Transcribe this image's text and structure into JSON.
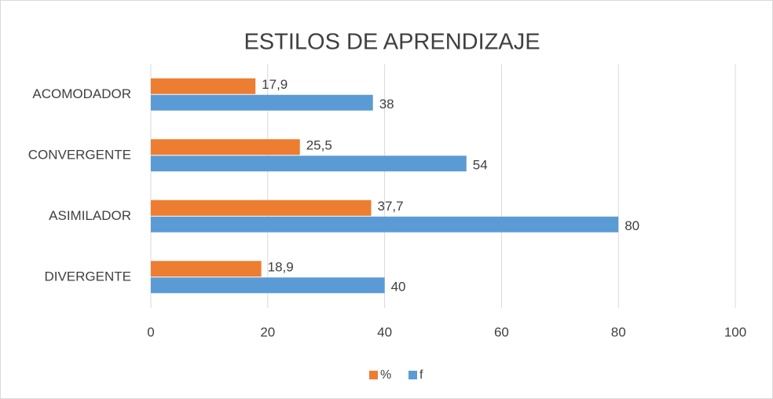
{
  "chart_data": {
    "type": "bar",
    "orientation": "horizontal",
    "title": "ESTILOS DE APRENDIZAJE",
    "categories": [
      "ACOMODADOR",
      "CONVERGENTE",
      "ASIMILADOR",
      "DIVERGENTE"
    ],
    "series": [
      {
        "name": "%",
        "color": "#ED7D31",
        "values": [
          17.9,
          25.5,
          37.7,
          18.9
        ],
        "value_labels": [
          "17,9",
          "25,5",
          "37,7",
          "18,9"
        ]
      },
      {
        "name": "f",
        "color": "#5B9BD5",
        "values": [
          38,
          54,
          80,
          40
        ]
      }
    ],
    "xlim": [
      0,
      100
    ],
    "xticks": [
      0,
      20,
      40,
      60,
      80,
      100
    ],
    "grid": true,
    "legend": "bottom"
  }
}
